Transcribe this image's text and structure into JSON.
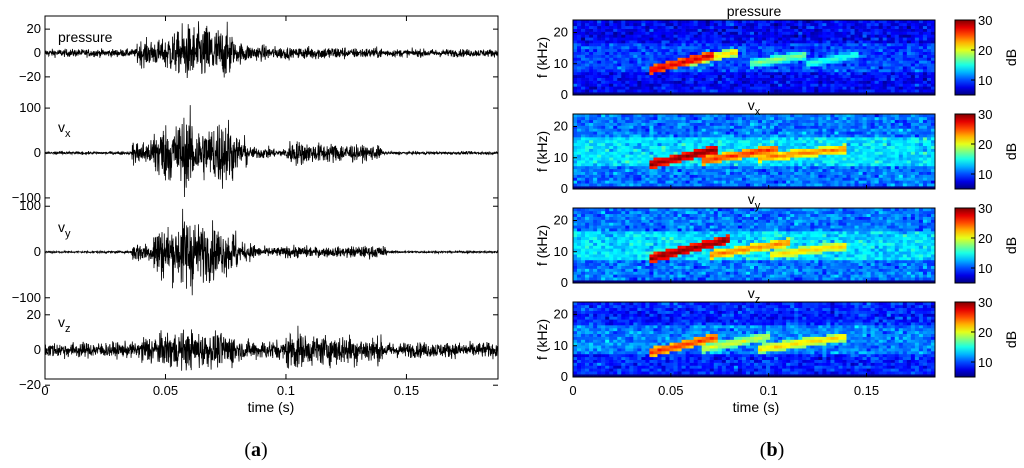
{
  "captions": {
    "a": "a",
    "b": "b"
  },
  "chart_data": [
    {
      "panel": "a",
      "type": "line",
      "xlabel": "time (s)",
      "xlim": [
        0,
        0.188
      ],
      "xticks": [
        0,
        0.05,
        0.1,
        0.15
      ],
      "xtick_labels": [
        "0",
        "0.05",
        "0.1",
        "0.15"
      ],
      "series": [
        {
          "name": "pressure",
          "ylim": [
            -28,
            28
          ],
          "yticks": [
            -20,
            0,
            20
          ],
          "ytick_labels": [
            "−20",
            "0",
            "20"
          ],
          "noise_amplitude": 3,
          "envelope": [
            [
              0.038,
              0.05,
              10
            ],
            [
              0.05,
              0.056,
              16
            ],
            [
              0.056,
              0.07,
              22
            ],
            [
              0.07,
              0.078,
              20
            ],
            [
              0.078,
              0.084,
              8
            ],
            [
              0.084,
              0.092,
              6
            ],
            [
              0.092,
              0.102,
              5
            ],
            [
              0.105,
              0.125,
              5
            ],
            [
              0.128,
              0.14,
              4
            ]
          ]
        },
        {
          "name": "v",
          "subscript": "x",
          "ylim": [
            -120,
            120
          ],
          "yticks": [
            -100,
            0,
            100
          ],
          "ytick_labels": [
            "−100",
            "0",
            "100"
          ],
          "noise_amplitude": 3,
          "envelope": [
            [
              0.036,
              0.045,
              25
            ],
            [
              0.045,
              0.055,
              60
            ],
            [
              0.055,
              0.062,
              75
            ],
            [
              0.062,
              0.07,
              55
            ],
            [
              0.07,
              0.078,
              70
            ],
            [
              0.078,
              0.084,
              35
            ],
            [
              0.084,
              0.095,
              12
            ],
            [
              0.095,
              0.1,
              8
            ],
            [
              0.1,
              0.108,
              25
            ],
            [
              0.108,
              0.128,
              20
            ],
            [
              0.128,
              0.14,
              15
            ]
          ]
        },
        {
          "name": "v",
          "subscript": "y",
          "ylim": [
            -120,
            120
          ],
          "yticks": [
            -100,
            0,
            100
          ],
          "ytick_labels": [
            "−100",
            "0",
            "100"
          ],
          "noise_amplitude": 2,
          "envelope": [
            [
              0.036,
              0.045,
              20
            ],
            [
              0.045,
              0.056,
              55
            ],
            [
              0.056,
              0.063,
              80
            ],
            [
              0.063,
              0.072,
              55
            ],
            [
              0.072,
              0.08,
              45
            ],
            [
              0.08,
              0.088,
              18
            ],
            [
              0.088,
              0.1,
              10
            ],
            [
              0.1,
              0.11,
              12
            ],
            [
              0.11,
              0.125,
              10
            ],
            [
              0.125,
              0.142,
              12
            ]
          ]
        },
        {
          "name": "v",
          "subscript": "z",
          "ylim": [
            -23,
            23
          ],
          "yticks": [
            -20,
            0,
            20
          ],
          "ytick_labels": [
            "−20",
            "0",
            "20"
          ],
          "noise_amplitude": 4,
          "envelope": [
            [
              0.04,
              0.05,
              8
            ],
            [
              0.05,
              0.065,
              10
            ],
            [
              0.065,
              0.08,
              9
            ],
            [
              0.08,
              0.098,
              5
            ],
            [
              0.1,
              0.106,
              11
            ],
            [
              0.106,
              0.13,
              8
            ],
            [
              0.13,
              0.14,
              7
            ]
          ]
        }
      ]
    },
    {
      "panel": "b",
      "type": "heatmap",
      "xlabel": "time (s)",
      "xlim": [
        0,
        0.185
      ],
      "xticks": [
        0,
        0.05,
        0.1,
        0.15
      ],
      "xtick_labels": [
        "0",
        "0.05",
        "0.1",
        "0.15"
      ],
      "ylabel": "f (kHz)",
      "ylim": [
        0,
        24
      ],
      "yticks": [
        0,
        10,
        20
      ],
      "ytick_labels": [
        "0",
        "10",
        "20"
      ],
      "colorbar": {
        "label": "dB",
        "range": [
          5,
          30
        ],
        "ticks": [
          10,
          20,
          30
        ],
        "tick_labels": [
          "10",
          "20",
          "30"
        ],
        "colormap": "jet"
      },
      "series": [
        {
          "title": "pressure",
          "background_db": 8,
          "band_db": 12,
          "chirps": [
            [
              0.04,
              0.072,
              8,
              13,
              28
            ],
            [
              0.055,
              0.085,
              10,
              14,
              22
            ],
            [
              0.09,
              0.12,
              10,
              13,
              18
            ],
            [
              0.12,
              0.145,
              10,
              13,
              16
            ]
          ]
        },
        {
          "title": "v",
          "subscript": "x",
          "background_db": 11,
          "band_db": 17,
          "chirps": [
            [
              0.04,
              0.075,
              8,
              13,
              30
            ],
            [
              0.065,
              0.105,
              9,
              13,
              26
            ],
            [
              0.095,
              0.14,
              10,
              13,
              24
            ]
          ]
        },
        {
          "title": "v",
          "subscript": "y",
          "background_db": 11,
          "band_db": 17,
          "chirps": [
            [
              0.04,
              0.08,
              8,
              14,
              30
            ],
            [
              0.07,
              0.11,
              9,
              13,
              24
            ],
            [
              0.1,
              0.14,
              9,
              12,
              22
            ]
          ]
        },
        {
          "title": "v",
          "subscript": "z",
          "background_db": 9,
          "band_db": 14,
          "chirps": [
            [
              0.04,
              0.075,
              8,
              13,
              26
            ],
            [
              0.065,
              0.1,
              9,
              13,
              20
            ],
            [
              0.095,
              0.14,
              9,
              13,
              22
            ]
          ]
        }
      ]
    }
  ]
}
